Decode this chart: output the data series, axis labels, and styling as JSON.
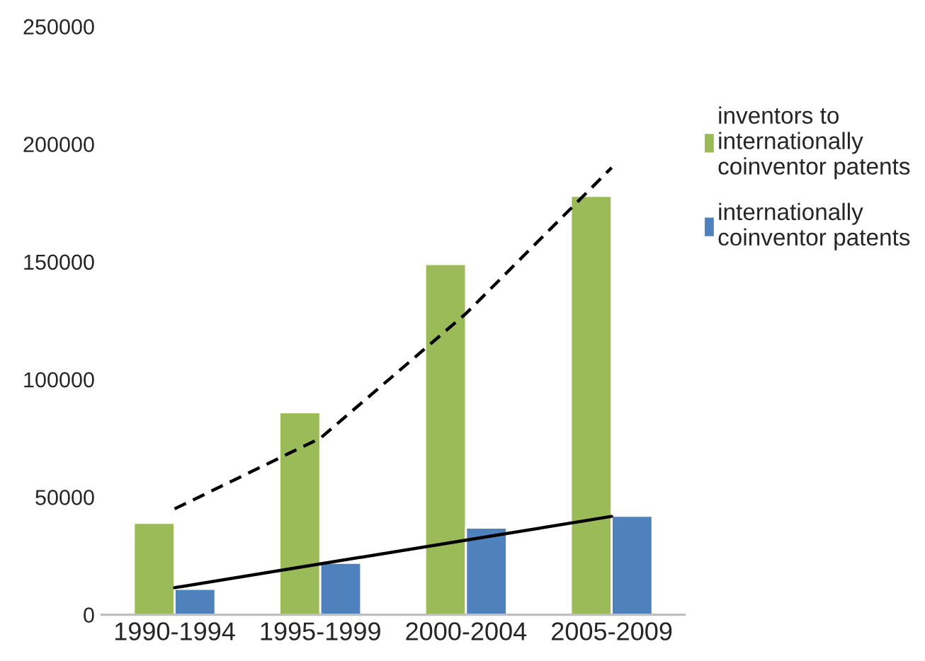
{
  "chart_data": {
    "type": "bar",
    "categories": [
      "1990-1994",
      "1995-1999",
      "2000-2004",
      "2005-2009"
    ],
    "series": [
      {
        "name": "inventors to internationally coinventor patents",
        "color": "#9bbb59",
        "values": [
          39000,
          86000,
          149000,
          178000
        ]
      },
      {
        "name": "internationally coinventor patents",
        "color": "#4f81bd",
        "values": [
          11000,
          22000,
          37000,
          42000
        ]
      },
      {
        "type": "line",
        "color": "#000000",
        "line_style": "dashed",
        "values": [
          45000,
          75000,
          128000,
          190000
        ]
      },
      {
        "type": "line",
        "color": "#000000",
        "line_style": "solid",
        "values": [
          11500,
          21600,
          31700,
          41800
        ]
      }
    ],
    "ylim": [
      0,
      250000
    ],
    "yticks": [
      0,
      50000,
      100000,
      150000,
      200000,
      250000
    ],
    "grid": false,
    "legend": "top right"
  }
}
